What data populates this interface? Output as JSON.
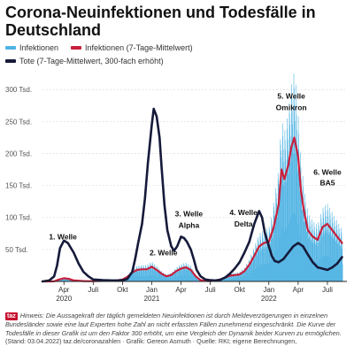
{
  "title": "Corona-Neuinfektionen und Todesfälle in Deutschland",
  "legend": {
    "infections": "Infektionen",
    "infections_avg": "Infektionen (7-Tage-Mittelwert)",
    "deaths": "Tote (7-Tage-Mittelwert, 300-fach erhöht)"
  },
  "colors": {
    "infections": "#4fb3e3",
    "infections_avg": "#c8203c",
    "deaths": "#161a3a",
    "grid": "#d6d6d6",
    "axis": "#222222"
  },
  "footer": {
    "badge": "taz",
    "note": "Hinweis: Die Aussagekraft der täglich gemeldeten Neuinfektionen ist durch Meldeverzögerungen in einzelnen Bundesländer sowie eine laut Experten hohe Zahl an nicht erfassten Fällen zunehmend eingeschränkt. Die Kurve der Todesfälle in dieser Grafik ist um den Faktor 300 erhöht, um eine Vergleich der Dynamik beider Kurven zu ermöglichen.",
    "source": "(Stand: 03.04.2022) taz.de/coronazahlen · Grafik: Gereon Asmuth · Quelle: RKI; eigene Berechnungen,"
  },
  "chart_data": {
    "type": "line",
    "title": "Corona-Neuinfektionen und Todesfälle in Deutschland",
    "xlabel": "",
    "ylabel": "",
    "x_ticks": [
      {
        "month": 3,
        "label": "Apr",
        "year": "2020"
      },
      {
        "month": 6,
        "label": "Juli",
        "year": ""
      },
      {
        "month": 9,
        "label": "Okt",
        "year": ""
      },
      {
        "month": 12,
        "label": "Jan",
        "year": "2021"
      },
      {
        "month": 15,
        "label": "Apr",
        "year": ""
      },
      {
        "month": 18,
        "label": "Juli",
        "year": ""
      },
      {
        "month": 21,
        "label": "Okt",
        "year": ""
      },
      {
        "month": 24,
        "label": "Jan",
        "year": "2022"
      },
      {
        "month": 27,
        "label": "Apr",
        "year": ""
      },
      {
        "month": 30,
        "label": "Juli",
        "year": ""
      }
    ],
    "xlim": [
      0.8,
      32
    ],
    "y_ticks": [
      {
        "value": 50000,
        "label": "50 Tsd."
      },
      {
        "value": 100000,
        "label": "100 Tsd."
      },
      {
        "value": 150000,
        "label": "150 Tsd."
      },
      {
        "value": 200000,
        "label": "200 Tsd."
      },
      {
        "value": 250000,
        "label": "250 Tsd."
      },
      {
        "value": 300000,
        "label": "300 Tsd."
      }
    ],
    "ylim": [
      0,
      310000
    ],
    "grid": true,
    "series": [
      {
        "name": "Infektionen (7-Tage-Mittelwert)",
        "key": "infections_avg",
        "x": [
          1,
          2,
          2.5,
          3,
          3.5,
          4,
          5,
          6,
          7,
          8,
          8.5,
          9,
          9.5,
          10,
          10.5,
          11,
          11.5,
          12,
          12.5,
          13,
          13.5,
          14,
          14.5,
          15,
          15.5,
          16,
          16.5,
          17,
          17.5,
          18,
          18.5,
          19,
          19.5,
          20,
          20.5,
          21,
          21.5,
          22,
          22.5,
          23,
          23.5,
          24,
          24.5,
          25,
          25.3,
          25.6,
          26,
          26.3,
          26.6,
          27,
          27.3,
          27.6,
          28,
          28.5,
          29,
          29.5,
          30,
          30.5,
          31,
          31.5
        ],
        "values": [
          0,
          200,
          3000,
          5000,
          4000,
          1500,
          500,
          400,
          800,
          1200,
          1800,
          3000,
          7000,
          14000,
          18000,
          19000,
          19000,
          23000,
          18000,
          12000,
          8000,
          10000,
          16000,
          20000,
          22000,
          18000,
          8000,
          2000,
          800,
          600,
          1200,
          3000,
          6000,
          9000,
          10000,
          11000,
          16000,
          26000,
          40000,
          55000,
          60000,
          62000,
          85000,
          120000,
          175000,
          160000,
          182000,
          210000,
          225000,
          195000,
          140000,
          110000,
          80000,
          70000,
          65000,
          85000,
          90000,
          80000,
          70000,
          60000
        ]
      },
      {
        "name": "Tote (7-Tage-Mittelwert, 300-fach erhöht)",
        "key": "deaths",
        "x": [
          0.8,
          1.5,
          2,
          2.3,
          2.6,
          3,
          3.4,
          4,
          4.5,
          5,
          5.5,
          6,
          7,
          8,
          8.5,
          9,
          9.5,
          10,
          10.3,
          10.6,
          11,
          11.3,
          11.6,
          12,
          12.2,
          12.5,
          12.8,
          13,
          13.3,
          13.6,
          14,
          14.3,
          14.6,
          15,
          15.3,
          15.6,
          16,
          16.3,
          16.6,
          17,
          17.5,
          18,
          18.5,
          19,
          19.5,
          20,
          20.5,
          21,
          21.5,
          22,
          22.5,
          23,
          23.3,
          23.6,
          24,
          24.3,
          24.6,
          25,
          25.5,
          26,
          26.5,
          27,
          27.5,
          28,
          28.5,
          29,
          29.5,
          30,
          30.5,
          31,
          31.5
        ],
        "values": [
          0,
          1500,
          8000,
          25000,
          52000,
          64000,
          60000,
          45000,
          28000,
          15000,
          8000,
          3000,
          2000,
          1500,
          1500,
          2000,
          4000,
          15000,
          35000,
          60000,
          90000,
          130000,
          185000,
          245000,
          270000,
          258000,
          225000,
          180000,
          120000,
          80000,
          55000,
          48000,
          55000,
          70000,
          68000,
          62000,
          50000,
          35000,
          18000,
          8000,
          3000,
          2000,
          1500,
          2500,
          6000,
          12000,
          20000,
          30000,
          45000,
          62000,
          90000,
          110000,
          100000,
          75000,
          55000,
          40000,
          32000,
          30000,
          35000,
          45000,
          55000,
          60000,
          55000,
          42000,
          30000,
          22000,
          20000,
          18000,
          22000,
          28000,
          38000
        ]
      }
    ],
    "bars": {
      "name": "Infektionen",
      "key": "infections",
      "note": "daily values, approximated by weekly fluctuation around the 7-day mean"
    },
    "annotations": [
      {
        "text": "1. Welle",
        "x": 2.9,
        "y": 66000
      },
      {
        "text": "2. Welle",
        "x": 13.2,
        "y": 41000
      },
      {
        "text": "3. Welle",
        "x": 15.8,
        "y": 102000
      },
      {
        "text": "Alpha",
        "x": 15.8,
        "y": 84000
      },
      {
        "text": "4. Welle",
        "x": 21.4,
        "y": 104000
      },
      {
        "text": "Delta",
        "x": 21.4,
        "y": 86000
      },
      {
        "text": "5. Welle",
        "x": 26.3,
        "y": 286000
      },
      {
        "text": "Omikron",
        "x": 26.3,
        "y": 268000
      },
      {
        "text": "6. Welle",
        "x": 30.0,
        "y": 167000
      },
      {
        "text": "BA5",
        "x": 30.0,
        "y": 150000
      }
    ]
  }
}
